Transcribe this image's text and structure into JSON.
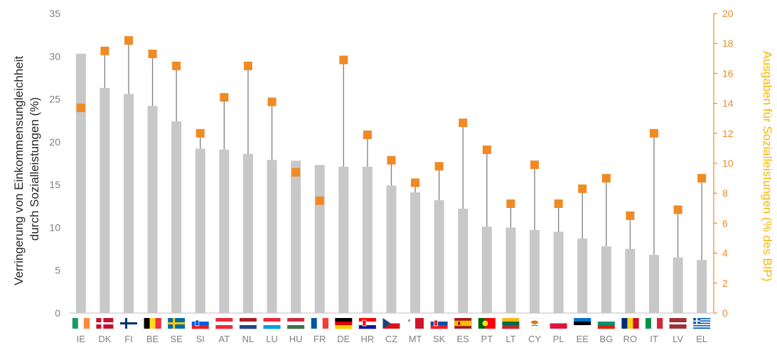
{
  "chart_data": {
    "type": "bar",
    "categories": [
      "IE",
      "DK",
      "FI",
      "BE",
      "SE",
      "SI",
      "AT",
      "NL",
      "LU",
      "HU",
      "FR",
      "DE",
      "HR",
      "CZ",
      "MT",
      "SK",
      "ES",
      "PT",
      "LT",
      "CY",
      "PL",
      "EE",
      "BG",
      "RO",
      "IT",
      "LV",
      "EL"
    ],
    "series": [
      {
        "axis": "left",
        "type": "bar",
        "values": [
          30.3,
          26.3,
          25.6,
          24.2,
          22.4,
          19.2,
          19.1,
          18.6,
          17.9,
          17.8,
          17.3,
          17.1,
          17.1,
          14.9,
          14.1,
          13.2,
          12.2,
          10.1,
          10.0,
          9.7,
          9.5,
          8.7,
          7.8,
          7.5,
          6.8,
          6.5,
          6.2
        ]
      },
      {
        "axis": "right",
        "type": "marker",
        "values": [
          13.7,
          17.5,
          18.2,
          17.3,
          16.5,
          12.0,
          14.4,
          16.5,
          14.1,
          9.4,
          7.5,
          16.9,
          11.9,
          10.2,
          8.7,
          9.8,
          12.7,
          10.9,
          7.3,
          9.9,
          7.3,
          8.3,
          9.0,
          6.5,
          12.0,
          6.9,
          9.0
        ]
      }
    ],
    "ylabel": "Verringerung von Einkommensungleichheit durch Sozialleistungen (%)",
    "ylabel_lines": [
      "Verringerung von Einkommensungleichheit",
      "durch Sozialleistungen (%)"
    ],
    "y2label": "Ausgaben für Sozialleistungen (% des BIP)",
    "ylim": [
      0,
      35
    ],
    "y2lim": [
      0,
      20
    ],
    "yticks": [
      0,
      5,
      10,
      15,
      20,
      25,
      30,
      35
    ],
    "y2ticks": [
      0,
      2,
      4,
      6,
      8,
      10,
      12,
      14,
      16,
      18,
      20
    ],
    "grid": false,
    "colors": {
      "bar": "#c8c8c8",
      "marker": "#f08a24",
      "stem": "#7f7f7f",
      "left_axis_text": "#808080",
      "right_axis": "#f08a24",
      "right_title": "#f5b800",
      "left_title": "#262626"
    },
    "flags": {
      "IE": {
        "type": "v",
        "colors": [
          "#169b62",
          "#ffffff",
          "#ff883e"
        ]
      },
      "DK": {
        "type": "nordic",
        "colors": [
          "#c8102e",
          "#ffffff"
        ]
      },
      "FI": {
        "type": "nordic",
        "colors": [
          "#ffffff",
          "#002f6c"
        ]
      },
      "BE": {
        "type": "v",
        "colors": [
          "#000000",
          "#fdda24",
          "#ef3340"
        ]
      },
      "SE": {
        "type": "nordic",
        "colors": [
          "#006aa7",
          "#fecc00"
        ]
      },
      "SI": {
        "type": "h",
        "colors": [
          "#ffffff",
          "#005ce6",
          "#ed1c24"
        ],
        "emblem": "#005ce6"
      },
      "AT": {
        "type": "h",
        "colors": [
          "#ed2939",
          "#ffffff",
          "#ed2939"
        ]
      },
      "NL": {
        "type": "h",
        "colors": [
          "#ae1c28",
          "#ffffff",
          "#21468b"
        ]
      },
      "LU": {
        "type": "h",
        "colors": [
          "#ed2939",
          "#ffffff",
          "#00a1de"
        ]
      },
      "HU": {
        "type": "h",
        "colors": [
          "#cd2a3e",
          "#ffffff",
          "#436f4d"
        ]
      },
      "FR": {
        "type": "v",
        "colors": [
          "#0055a4",
          "#ffffff",
          "#ef4135"
        ]
      },
      "DE": {
        "type": "h",
        "colors": [
          "#000000",
          "#dd0000",
          "#ffce00"
        ]
      },
      "HR": {
        "type": "h",
        "colors": [
          "#ff0000",
          "#ffffff",
          "#171796"
        ],
        "emblem": "#ff0000"
      },
      "CZ": {
        "type": "cz",
        "colors": [
          "#ffffff",
          "#d7141a",
          "#11457e"
        ]
      },
      "MT": {
        "type": "v2",
        "colors": [
          "#ffffff",
          "#cf142b"
        ]
      },
      "SK": {
        "type": "h",
        "colors": [
          "#ffffff",
          "#0b4ea2",
          "#ee1c25"
        ],
        "emblem": "#ee1c25"
      },
      "ES": {
        "type": "es",
        "colors": [
          "#aa151b",
          "#f1bf00",
          "#aa151b"
        ]
      },
      "PT": {
        "type": "pt",
        "colors": [
          "#006600",
          "#ff0000"
        ]
      },
      "LT": {
        "type": "h",
        "colors": [
          "#fdb913",
          "#006a44",
          "#c1272d"
        ]
      },
      "CY": {
        "type": "cy",
        "colors": [
          "#ffffff",
          "#d57800",
          "#4e5b31"
        ]
      },
      "PL": {
        "type": "h2",
        "colors": [
          "#ffffff",
          "#dc143c"
        ]
      },
      "EE": {
        "type": "h",
        "colors": [
          "#0072ce",
          "#000000",
          "#ffffff"
        ]
      },
      "BG": {
        "type": "h",
        "colors": [
          "#ffffff",
          "#00966e",
          "#d62612"
        ]
      },
      "RO": {
        "type": "v",
        "colors": [
          "#002b7f",
          "#fcd116",
          "#ce1126"
        ]
      },
      "IT": {
        "type": "v",
        "colors": [
          "#009246",
          "#ffffff",
          "#ce2b37"
        ]
      },
      "LV": {
        "type": "lv",
        "colors": [
          "#9e3039",
          "#ffffff"
        ]
      },
      "EL": {
        "type": "gr",
        "colors": [
          "#0d5eaf",
          "#ffffff"
        ]
      }
    }
  }
}
